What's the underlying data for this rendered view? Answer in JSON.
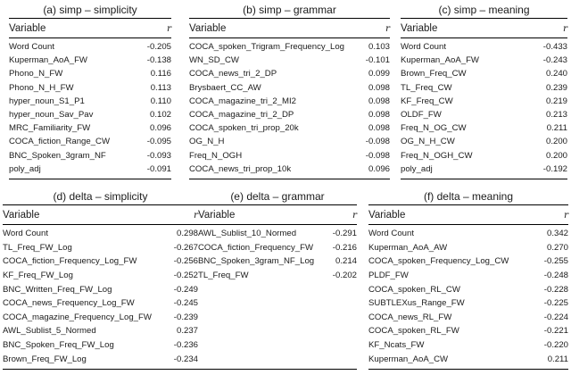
{
  "panels": [
    {
      "label": "a",
      "title": "(a) simp – simplicity",
      "col_variable": "Variable",
      "col_r": "r",
      "rows": [
        [
          "Word Count",
          "-0.205"
        ],
        [
          "Kuperman_AoA_FW",
          "-0.138"
        ],
        [
          "Phono_N_FW",
          "0.116"
        ],
        [
          "Phono_N_H_FW",
          "0.113"
        ],
        [
          "hyper_noun_S1_P1",
          "0.110"
        ],
        [
          "hyper_noun_Sav_Pav",
          "0.102"
        ],
        [
          "MRC_Familiarity_FW",
          "0.096"
        ],
        [
          "COCA_fiction_Range_CW",
          "-0.095"
        ],
        [
          "BNC_Spoken_3gram_NF",
          "-0.093"
        ],
        [
          "poly_adj",
          "-0.091"
        ]
      ]
    },
    {
      "label": "b",
      "title": "(b) simp – grammar",
      "col_variable": "Variable",
      "col_r": "r",
      "rows": [
        [
          "COCA_spoken_Trigram_Frequency_Log",
          "0.103"
        ],
        [
          "WN_SD_CW",
          "-0.101"
        ],
        [
          "COCA_news_tri_2_DP",
          "0.099"
        ],
        [
          "Brysbaert_CC_AW",
          "0.098"
        ],
        [
          "COCA_magazine_tri_2_MI2",
          "0.098"
        ],
        [
          "COCA_magazine_tri_2_DP",
          "0.098"
        ],
        [
          "COCA_spoken_tri_prop_20k",
          "0.098"
        ],
        [
          "OG_N_H",
          "-0.098"
        ],
        [
          "Freq_N_OGH",
          "-0.098"
        ],
        [
          "COCA_news_tri_prop_10k",
          "0.096"
        ]
      ]
    },
    {
      "label": "c",
      "title": "(c) simp – meaning",
      "col_variable": "Variable",
      "col_r": "r",
      "rows": [
        [
          "Word Count",
          "-0.433"
        ],
        [
          "Kuperman_AoA_FW",
          "-0.243"
        ],
        [
          "Brown_Freq_CW",
          "0.240"
        ],
        [
          "TL_Freq_CW",
          "0.239"
        ],
        [
          "KF_Freq_CW",
          "0.219"
        ],
        [
          "OLDF_FW",
          "0.213"
        ],
        [
          "Freq_N_OG_CW",
          "0.211"
        ],
        [
          "OG_N_H_CW",
          "0.200"
        ],
        [
          "Freq_N_OGH_CW",
          "0.200"
        ],
        [
          "poly_adj",
          "-0.192"
        ]
      ]
    },
    {
      "label": "d",
      "title": "(d) delta – simplicity",
      "col_variable": "Variable",
      "col_r": "r",
      "rows": [
        [
          "Word Count",
          "0.298"
        ],
        [
          "TL_Freq_FW_Log",
          "-0.267"
        ],
        [
          "COCA_fiction_Frequency_Log_FW",
          "-0.256"
        ],
        [
          "KF_Freq_FW_Log",
          "-0.252"
        ],
        [
          "BNC_Written_Freq_FW_Log",
          "-0.249"
        ],
        [
          "COCA_news_Frequency_Log_FW",
          "-0.245"
        ],
        [
          "COCA_magazine_Frequency_Log_FW",
          "-0.239"
        ],
        [
          "AWL_Sublist_5_Normed",
          "0.237"
        ],
        [
          "BNC_Spoken_Freq_FW_Log",
          "-0.236"
        ],
        [
          "Brown_Freq_FW_Log",
          "-0.234"
        ]
      ]
    },
    {
      "label": "e",
      "title": "(e) delta – grammar",
      "col_variable": "Variable",
      "col_r": "r",
      "rows": [
        [
          "AWL_Sublist_10_Normed",
          "-0.291"
        ],
        [
          "COCA_fiction_Frequency_FW",
          "-0.216"
        ],
        [
          "BNC_Spoken_3gram_NF_Log",
          "0.214"
        ],
        [
          "TL_Freq_FW",
          "-0.202"
        ]
      ]
    },
    {
      "label": "f",
      "title": "(f) delta – meaning",
      "col_variable": "Variable",
      "col_r": "r",
      "rows": [
        [
          "Word Count",
          "0.342"
        ],
        [
          "Kuperman_AoA_AW",
          "0.270"
        ],
        [
          "COCA_spoken_Frequency_Log_CW",
          "-0.255"
        ],
        [
          "PLDF_FW",
          "-0.248"
        ],
        [
          "COCA_spoken_RL_CW",
          "-0.228"
        ],
        [
          "SUBTLEXus_Range_FW",
          "-0.225"
        ],
        [
          "COCA_news_RL_FW",
          "-0.224"
        ],
        [
          "COCA_spoken_RL_FW",
          "-0.221"
        ],
        [
          "KF_Ncats_FW",
          "-0.220"
        ],
        [
          "Kuperman_AoA_CW",
          "0.211"
        ]
      ]
    }
  ]
}
